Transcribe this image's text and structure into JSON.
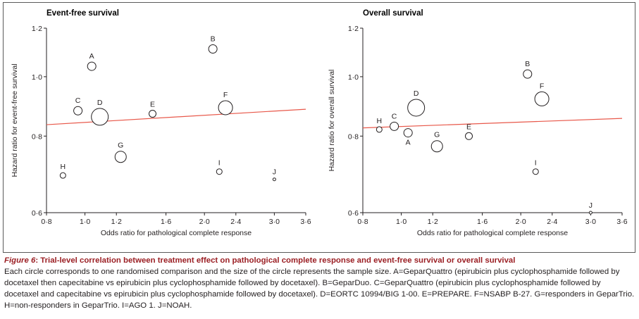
{
  "figure": {
    "label": "Figure 6",
    "title": ": Trial-level correlation between treatment effect on pathological complete response and event-free survival or overall survival",
    "caption": "Each circle corresponds to one randomised comparison and the size of the circle represents the sample size. A=GeparQuattro (epirubicin plus cyclophosphamide followed by docetaxel then capecitabine vs epirubicin plus cyclophosphamide followed by docetaxel). B=GeparDuo. C=GeparQuattro (epirubicin plus cyclophosphamide followed by docetaxel and capecitabine vs epirubicin plus cyclophosphamide followed by docetaxel). D=EORTC 10994/BIG 1-00. E=PREPARE. F=NSABP B-27. G=responders in GeparTrio. H=non-responders in GeparTrio. I=AGO 1. J=NOAH."
  },
  "chart_data": [
    {
      "type": "scatter",
      "title": "Event-free survival",
      "xlabel": "Odds ratio for pathological complete response",
      "ylabel": "Hazard ratio for event-free survival",
      "xlim": [
        0.8,
        3.6
      ],
      "ylim": [
        0.6,
        1.2
      ],
      "x_scale": "log",
      "y_scale": "log",
      "x_ticks": [
        "0·8",
        "1·0",
        "1·2",
        "1·6",
        "2·0",
        "2·4",
        "3·0",
        "3·6"
      ],
      "x_tick_values": [
        0.8,
        1.0,
        1.2,
        1.6,
        2.0,
        2.4,
        3.0,
        3.6
      ],
      "y_ticks": [
        "0·6",
        "0·8",
        "1·0",
        "1·2"
      ],
      "y_tick_values": [
        0.6,
        0.8,
        1.0,
        1.2
      ],
      "grid": false,
      "points": [
        {
          "label": "A",
          "x": 1.04,
          "y": 1.04,
          "size": 6
        },
        {
          "label": "B",
          "x": 2.1,
          "y": 1.11,
          "size": 6
        },
        {
          "label": "C",
          "x": 0.96,
          "y": 0.88,
          "size": 6
        },
        {
          "label": "D",
          "x": 1.09,
          "y": 0.86,
          "size": 12
        },
        {
          "label": "E",
          "x": 1.48,
          "y": 0.87,
          "size": 5
        },
        {
          "label": "F",
          "x": 2.26,
          "y": 0.89,
          "size": 10
        },
        {
          "label": "G",
          "x": 1.23,
          "y": 0.74,
          "size": 8
        },
        {
          "label": "H",
          "x": 0.88,
          "y": 0.69,
          "size": 4
        },
        {
          "label": "I",
          "x": 2.18,
          "y": 0.7,
          "size": 4
        },
        {
          "label": "J",
          "x": 3.0,
          "y": 0.68,
          "size": 2
        }
      ],
      "regression": {
        "x": [
          0.8,
          3.6
        ],
        "y": [
          0.835,
          0.885
        ],
        "color": "#e8584a"
      }
    },
    {
      "type": "scatter",
      "title": "Overall survival",
      "xlabel": "Odds ratio for pathological complete response",
      "ylabel": "Hazard ratio for overall survival",
      "xlim": [
        0.8,
        3.6
      ],
      "ylim": [
        0.6,
        1.2
      ],
      "x_scale": "log",
      "y_scale": "log",
      "x_ticks": [
        "0·8",
        "1·0",
        "1·2",
        "1·6",
        "2·0",
        "2·4",
        "3·0",
        "3·6"
      ],
      "x_tick_values": [
        0.8,
        1.0,
        1.2,
        1.6,
        2.0,
        2.4,
        3.0,
        3.6
      ],
      "y_ticks": [
        "0·6",
        "0·8",
        "1·0",
        "1·2"
      ],
      "y_tick_values": [
        0.6,
        0.8,
        1.0,
        1.2
      ],
      "grid": false,
      "points": [
        {
          "label": "A",
          "x": 1.04,
          "y": 0.81,
          "size": 6
        },
        {
          "label": "B",
          "x": 2.08,
          "y": 1.01,
          "size": 6
        },
        {
          "label": "C",
          "x": 0.96,
          "y": 0.83,
          "size": 6
        },
        {
          "label": "D",
          "x": 1.09,
          "y": 0.89,
          "size": 12
        },
        {
          "label": "E",
          "x": 1.48,
          "y": 0.8,
          "size": 5
        },
        {
          "label": "F",
          "x": 2.26,
          "y": 0.92,
          "size": 10
        },
        {
          "label": "G",
          "x": 1.23,
          "y": 0.77,
          "size": 8
        },
        {
          "label": "H",
          "x": 0.88,
          "y": 0.82,
          "size": 4
        },
        {
          "label": "I",
          "x": 2.18,
          "y": 0.7,
          "size": 4
        },
        {
          "label": "J",
          "x": 3.0,
          "y": 0.6,
          "size": 2
        }
      ],
      "regression": {
        "x": [
          0.8,
          3.6
        ],
        "y": [
          0.825,
          0.855
        ],
        "color": "#e8584a"
      }
    }
  ]
}
